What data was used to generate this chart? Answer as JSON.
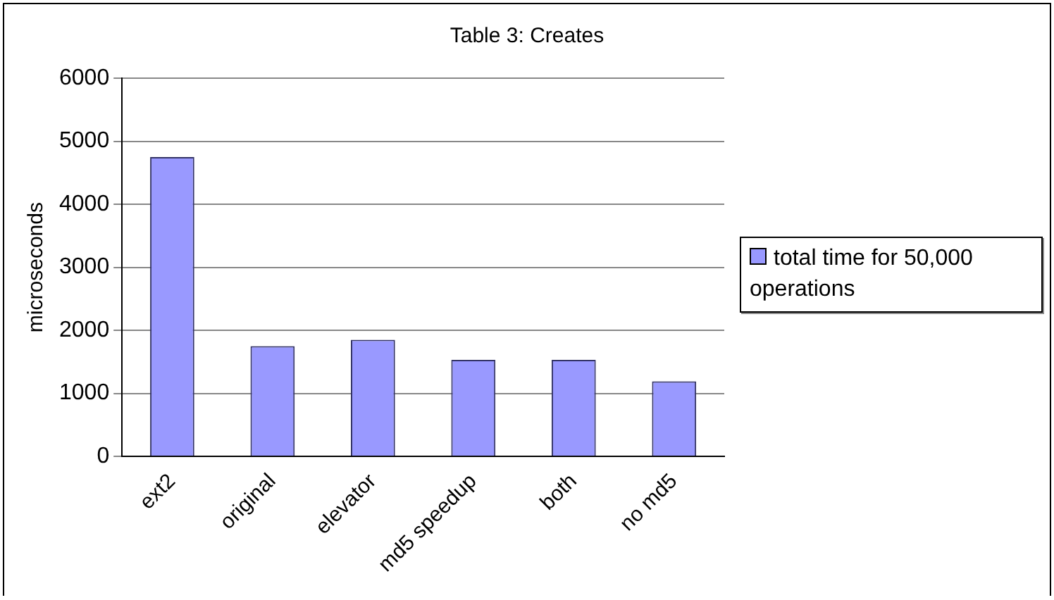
{
  "chart_data": {
    "type": "bar",
    "title": "Table 3: Creates",
    "ylabel": "microseconds",
    "categories": [
      "ext2",
      "original",
      "elevator",
      "md5 speedup",
      "both",
      "no md5"
    ],
    "series": [
      {
        "name": "total time for 50,000 operations",
        "color": "#9999ff",
        "values": [
          4750,
          1750,
          1850,
          1530,
          1530,
          1190
        ]
      }
    ],
    "ylim": [
      0,
      6000
    ],
    "yticks": [
      0,
      1000,
      2000,
      3000,
      4000,
      5000,
      6000
    ],
    "grid": "y",
    "legend": "right"
  }
}
